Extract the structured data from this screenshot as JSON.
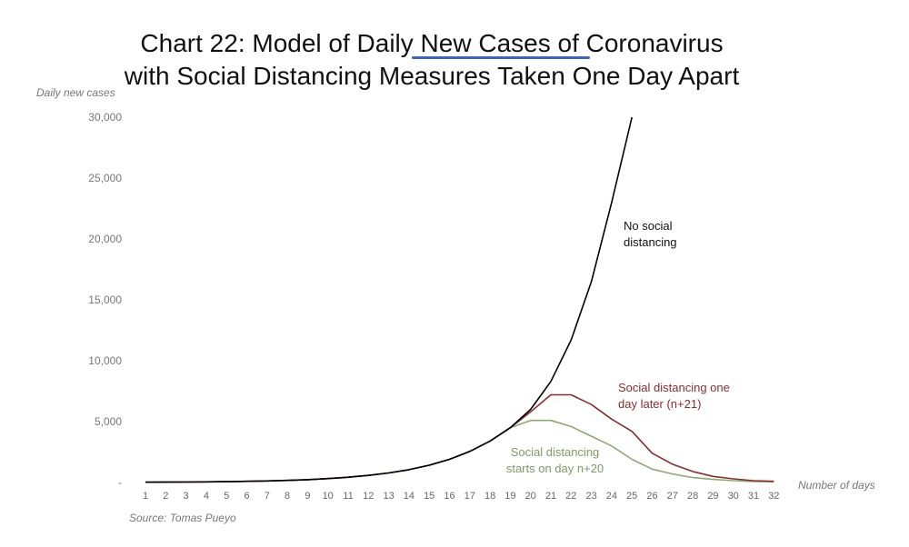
{
  "chart_data": {
    "type": "line",
    "title_line1": "Chart 22: Model of Daily New Cases of Coronavirus",
    "title_line2": "with Social Distancing Measures Taken One Day Apart",
    "ylabel": "Daily new cases",
    "xlabel": "Number of days",
    "source": "Source: Tomas Pueyo",
    "ylim": [
      0,
      30000
    ],
    "yticks": [
      0,
      5000,
      10000,
      15000,
      20000,
      25000,
      30000
    ],
    "ytick_labels": [
      "-",
      "5,000",
      "10,000",
      "15,000",
      "20,000",
      "25,000",
      "30,000"
    ],
    "x": [
      1,
      2,
      3,
      4,
      5,
      6,
      7,
      8,
      9,
      10,
      11,
      12,
      13,
      14,
      15,
      16,
      17,
      18,
      19,
      20,
      21,
      22,
      23,
      24,
      25,
      26,
      27,
      28,
      29,
      30,
      31,
      32
    ],
    "series": [
      {
        "name": "No social distancing",
        "label_line1": "No social",
        "label_line2": "distancing",
        "color": "#000000",
        "x": [
          1,
          2,
          3,
          4,
          5,
          6,
          7,
          8,
          9,
          10,
          11,
          12,
          13,
          14,
          15,
          16,
          17,
          18,
          19,
          20,
          21,
          22,
          23,
          24,
          25
        ],
        "values": [
          20,
          28,
          38,
          52,
          70,
          95,
          130,
          175,
          235,
          320,
          430,
          580,
          780,
          1050,
          1420,
          1900,
          2550,
          3400,
          4500,
          6000,
          8300,
          11700,
          16500,
          23000,
          30000
        ]
      },
      {
        "name": "Social distancing one day later (n+21)",
        "label_line1": "Social distancing one",
        "label_line2": "day later (n+21)",
        "color": "#8b2c2c",
        "x": [
          1,
          2,
          3,
          4,
          5,
          6,
          7,
          8,
          9,
          10,
          11,
          12,
          13,
          14,
          15,
          16,
          17,
          18,
          19,
          20,
          21,
          22,
          23,
          24,
          25,
          26,
          27,
          28,
          29,
          30,
          31,
          32
        ],
        "values": [
          20,
          28,
          38,
          52,
          70,
          95,
          130,
          175,
          235,
          320,
          430,
          580,
          780,
          1050,
          1420,
          1900,
          2550,
          3400,
          4500,
          5800,
          7200,
          7200,
          6400,
          5200,
          4200,
          2400,
          1500,
          900,
          500,
          300,
          150,
          100
        ]
      },
      {
        "name": "Social distancing starts on day n+20",
        "label_line1": "Social distancing",
        "label_line2": "starts on day n+20",
        "color": "#8fa872",
        "x": [
          1,
          2,
          3,
          4,
          5,
          6,
          7,
          8,
          9,
          10,
          11,
          12,
          13,
          14,
          15,
          16,
          17,
          18,
          19,
          20,
          21,
          22,
          23,
          24,
          25,
          26,
          27,
          28,
          29,
          30,
          31,
          32
        ],
        "values": [
          20,
          28,
          38,
          52,
          70,
          95,
          130,
          175,
          235,
          320,
          430,
          580,
          780,
          1050,
          1420,
          1900,
          2550,
          3400,
          4500,
          5100,
          5100,
          4600,
          3800,
          3000,
          1900,
          1100,
          700,
          400,
          250,
          150,
          80,
          50
        ]
      }
    ]
  },
  "colors": {
    "underline": "#3a64c8",
    "axis_text": "#777777"
  }
}
